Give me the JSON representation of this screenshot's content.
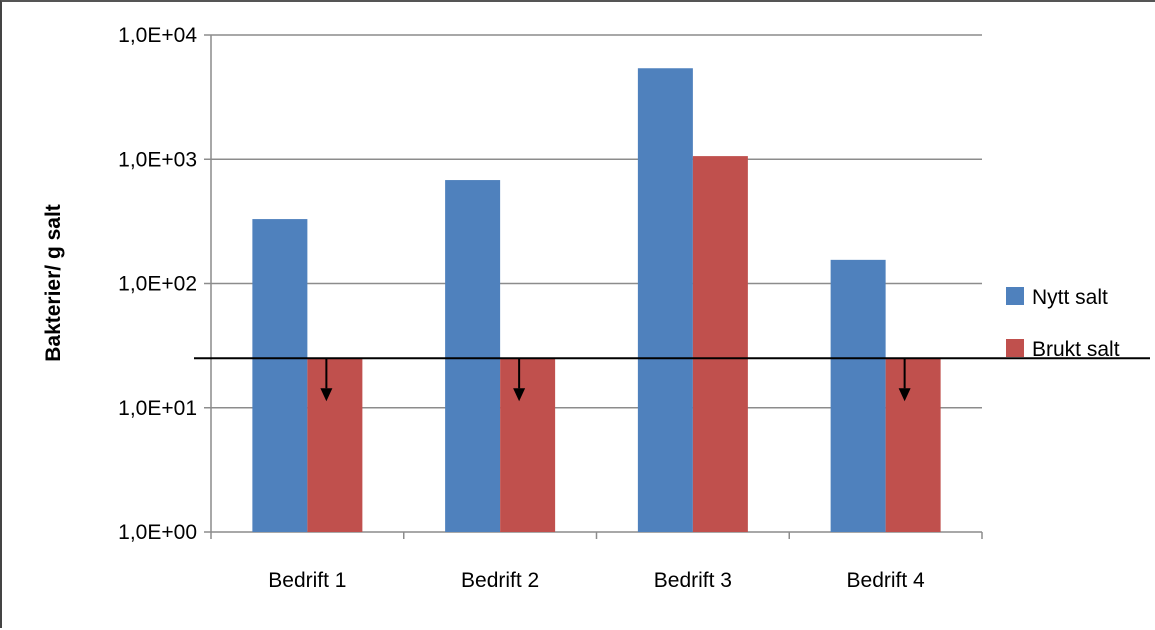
{
  "chart_data": {
    "type": "bar",
    "categories": [
      "Bedrift 1",
      "Bedrift 2",
      "Bedrift 3",
      "Bedrift 4"
    ],
    "series": [
      {
        "name": "Nytt salt",
        "color": "#4F81BD",
        "values": [
          330,
          680,
          5400,
          155
        ]
      },
      {
        "name": "Brukt salt",
        "color": "#C0504D",
        "values": [
          25,
          25,
          1060,
          25
        ]
      }
    ],
    "ylabel": "Bakterier/ g salt",
    "yscale": "log",
    "ylim": [
      1,
      10000
    ],
    "y_ticks": [
      {
        "value": 1,
        "label": "1,0E+00"
      },
      {
        "value": 10,
        "label": "1,0E+01"
      },
      {
        "value": 100,
        "label": "1,0E+02"
      },
      {
        "value": 1000,
        "label": "1,0E+03"
      },
      {
        "value": 10000,
        "label": "1,0E+04"
      }
    ],
    "detection_limit": 25,
    "below_limit_arrows": [
      {
        "category": "Bedrift 1",
        "series": "Brukt salt"
      },
      {
        "category": "Bedrift 2",
        "series": "Brukt salt"
      },
      {
        "category": "Bedrift 4",
        "series": "Brukt salt"
      }
    ],
    "grid": true,
    "legend_position": "right"
  }
}
